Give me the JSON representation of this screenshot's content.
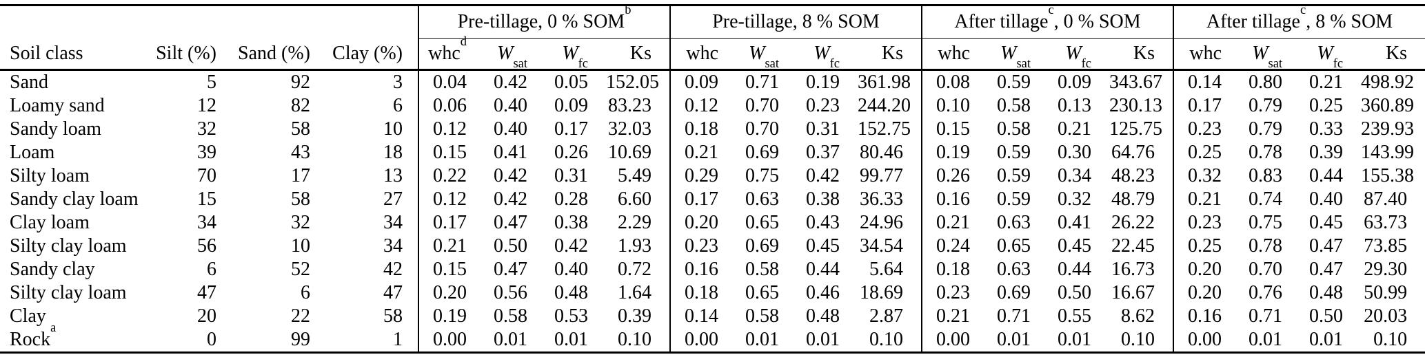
{
  "table": {
    "left_headers": [
      "Soil class",
      "Silt (%)",
      "Sand (%)",
      "Clay (%)"
    ],
    "groups": [
      {
        "pre": "Pre-tillage, 0 % SOM",
        "sup": "b",
        "post": "",
        "cols": [
          {
            "base": "whc",
            "sup": "d"
          },
          {
            "base": "W",
            "italic": true,
            "sub": "sat"
          },
          {
            "base": "W",
            "italic": true,
            "sub": "fc"
          },
          {
            "base": "Ks"
          }
        ]
      },
      {
        "pre": "Pre-tillage, 8 % SOM",
        "sup": "",
        "post": "",
        "cols": [
          {
            "base": "whc"
          },
          {
            "base": "W",
            "italic": true,
            "sub": "sat"
          },
          {
            "base": "W",
            "italic": true,
            "sub": "fc"
          },
          {
            "base": "Ks"
          }
        ]
      },
      {
        "pre": "After tillage",
        "sup": "c",
        "post": ", 0 % SOM",
        "cols": [
          {
            "base": "whc"
          },
          {
            "base": "W",
            "italic": true,
            "sub": "sat"
          },
          {
            "base": "W",
            "italic": true,
            "sub": "fc"
          },
          {
            "base": "Ks"
          }
        ]
      },
      {
        "pre": "After tillage",
        "sup": "c",
        "post": ", 8 % SOM",
        "cols": [
          {
            "base": "whc"
          },
          {
            "base": "W",
            "italic": true,
            "sub": "sat"
          },
          {
            "base": "W",
            "italic": true,
            "sub": "fc"
          },
          {
            "base": "Ks"
          }
        ]
      }
    ],
    "rows": [
      {
        "label": "Sand",
        "sup": "",
        "values": [
          "5",
          "92",
          "3",
          "0.04",
          "0.42",
          "0.05",
          "152.05",
          "0.09",
          "0.71",
          "0.19",
          "361.98",
          "0.08",
          "0.59",
          "0.09",
          "343.67",
          "0.14",
          "0.80",
          "0.21",
          "498.92"
        ]
      },
      {
        "label": "Loamy sand",
        "sup": "",
        "values": [
          "12",
          "82",
          "6",
          "0.06",
          "0.40",
          "0.09",
          "83.23",
          "0.12",
          "0.70",
          "0.23",
          "244.20",
          "0.10",
          "0.58",
          "0.13",
          "230.13",
          "0.17",
          "0.79",
          "0.25",
          "360.89"
        ]
      },
      {
        "label": "Sandy loam",
        "sup": "",
        "values": [
          "32",
          "58",
          "10",
          "0.12",
          "0.40",
          "0.17",
          "32.03",
          "0.18",
          "0.70",
          "0.31",
          "152.75",
          "0.15",
          "0.58",
          "0.21",
          "125.75",
          "0.23",
          "0.79",
          "0.33",
          "239.93"
        ]
      },
      {
        "label": "Loam",
        "sup": "",
        "values": [
          "39",
          "43",
          "18",
          "0.15",
          "0.41",
          "0.26",
          "10.69",
          "0.21",
          "0.69",
          "0.37",
          "80.46",
          "0.19",
          "0.59",
          "0.30",
          "64.76",
          "0.25",
          "0.78",
          "0.39",
          "143.99"
        ]
      },
      {
        "label": "Silty loam",
        "sup": "",
        "values": [
          "70",
          "17",
          "13",
          "0.22",
          "0.42",
          "0.31",
          "5.49",
          "0.29",
          "0.75",
          "0.42",
          "99.77",
          "0.26",
          "0.59",
          "0.34",
          "48.23",
          "0.32",
          "0.83",
          "0.44",
          "155.38"
        ]
      },
      {
        "label": "Sandy clay loam",
        "sup": "",
        "values": [
          "15",
          "58",
          "27",
          "0.12",
          "0.42",
          "0.28",
          "6.60",
          "0.17",
          "0.63",
          "0.38",
          "36.33",
          "0.16",
          "0.59",
          "0.32",
          "48.79",
          "0.21",
          "0.74",
          "0.40",
          "87.40"
        ]
      },
      {
        "label": "Clay loam",
        "sup": "",
        "values": [
          "34",
          "32",
          "34",
          "0.17",
          "0.47",
          "0.38",
          "2.29",
          "0.20",
          "0.65",
          "0.43",
          "24.96",
          "0.21",
          "0.63",
          "0.41",
          "26.22",
          "0.23",
          "0.75",
          "0.45",
          "63.73"
        ]
      },
      {
        "label": "Silty clay loam",
        "sup": "",
        "values": [
          "56",
          "10",
          "34",
          "0.21",
          "0.50",
          "0.42",
          "1.93",
          "0.23",
          "0.69",
          "0.45",
          "34.54",
          "0.24",
          "0.65",
          "0.45",
          "22.45",
          "0.25",
          "0.78",
          "0.47",
          "73.85"
        ]
      },
      {
        "label": "Sandy clay",
        "sup": "",
        "values": [
          "6",
          "52",
          "42",
          "0.15",
          "0.47",
          "0.40",
          "0.72",
          "0.16",
          "0.58",
          "0.44",
          "5.64",
          "0.18",
          "0.63",
          "0.44",
          "16.73",
          "0.20",
          "0.70",
          "0.47",
          "29.30"
        ]
      },
      {
        "label": "Silty clay loam",
        "sup": "",
        "values": [
          "47",
          "6",
          "47",
          "0.20",
          "0.56",
          "0.48",
          "1.64",
          "0.18",
          "0.65",
          "0.46",
          "18.69",
          "0.23",
          "0.69",
          "0.50",
          "16.67",
          "0.20",
          "0.76",
          "0.48",
          "50.99"
        ]
      },
      {
        "label": "Clay",
        "sup": "",
        "values": [
          "20",
          "22",
          "58",
          "0.19",
          "0.58",
          "0.53",
          "0.39",
          "0.14",
          "0.58",
          "0.48",
          "2.87",
          "0.21",
          "0.71",
          "0.55",
          "8.62",
          "0.16",
          "0.71",
          "0.50",
          "20.03"
        ]
      },
      {
        "label": "Rock",
        "sup": "a",
        "values": [
          "0",
          "99",
          "1",
          "0.00",
          "0.01",
          "0.01",
          "0.10",
          "0.00",
          "0.01",
          "0.01",
          "0.10",
          "0.00",
          "0.01",
          "0.01",
          "0.10",
          "0.00",
          "0.01",
          "0.01",
          "0.10"
        ]
      }
    ]
  }
}
